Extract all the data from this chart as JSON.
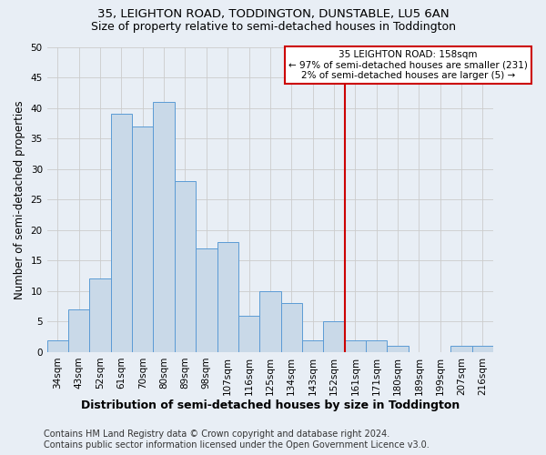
{
  "title1": "35, LEIGHTON ROAD, TODDINGTON, DUNSTABLE, LU5 6AN",
  "title2": "Size of property relative to semi-detached houses in Toddington",
  "xlabel": "Distribution of semi-detached houses by size in Toddington",
  "ylabel": "Number of semi-detached properties",
  "bin_labels": [
    "34sqm",
    "43sqm",
    "52sqm",
    "61sqm",
    "70sqm",
    "80sqm",
    "89sqm",
    "98sqm",
    "107sqm",
    "116sqm",
    "125sqm",
    "134sqm",
    "143sqm",
    "152sqm",
    "161sqm",
    "171sqm",
    "180sqm",
    "189sqm",
    "199sqm",
    "207sqm",
    "216sqm"
  ],
  "bar_heights": [
    2,
    7,
    12,
    39,
    37,
    41,
    28,
    17,
    18,
    6,
    10,
    8,
    2,
    5,
    2,
    2,
    1,
    0,
    0,
    1,
    1
  ],
  "bar_color": "#c9d9e8",
  "bar_edge_color": "#5b9bd5",
  "background_color": "#e8eef5",
  "red_line_x": 13.5,
  "annotation_title": "35 LEIGHTON ROAD: 158sqm",
  "annotation_line1": "← 97% of semi-detached houses are smaller (231)",
  "annotation_line2": "2% of semi-detached houses are larger (5) →",
  "annotation_box_facecolor": "#ffffff",
  "annotation_box_edgecolor": "#cc0000",
  "red_line_color": "#cc0000",
  "ylim": [
    0,
    50
  ],
  "yticks": [
    0,
    5,
    10,
    15,
    20,
    25,
    30,
    35,
    40,
    45,
    50
  ],
  "footer_line1": "Contains HM Land Registry data © Crown copyright and database right 2024.",
  "footer_line2": "Contains public sector information licensed under the Open Government Licence v3.0.",
  "title1_fontsize": 9.5,
  "title2_fontsize": 9,
  "xlabel_fontsize": 9,
  "ylabel_fontsize": 8.5,
  "annot_fontsize": 7.5,
  "tick_fontsize": 7.5,
  "footer_fontsize": 7
}
